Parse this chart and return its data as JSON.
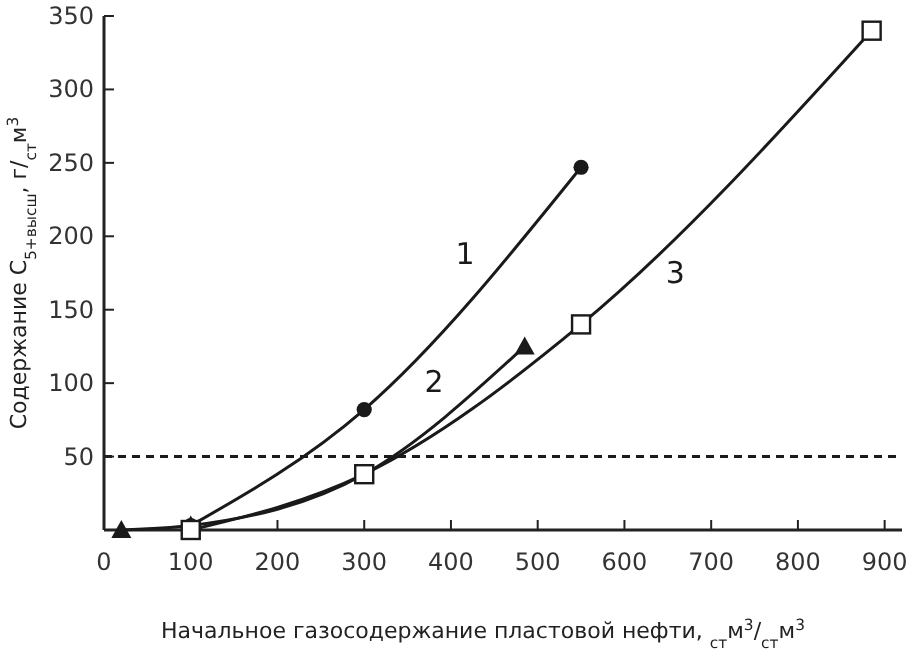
{
  "chart_data": {
    "type": "line",
    "xlabel": "Начальное газосодержание пластовой нефти, $_{ст}$м$^{3}$/$_{ст}$м$^{3}$",
    "ylabel": "Содержание C$_{5+высш}$, г/$_{ст}$м$^{3}$",
    "xlim": [
      0,
      920
    ],
    "ylim": [
      0,
      350
    ],
    "xticks": [
      0,
      100,
      200,
      300,
      400,
      500,
      600,
      700,
      800,
      900
    ],
    "yticks": [
      50,
      100,
      150,
      200,
      250,
      300,
      350
    ],
    "grid": false,
    "line_style": "solid",
    "series": [
      {
        "name": "1",
        "color": "#1a1a1a",
        "marker": "circle",
        "x": [
          100,
          300,
          550
        ],
        "values": [
          3,
          82,
          247
        ]
      },
      {
        "name": "2",
        "color": "#1a1a1a",
        "marker": "triangle",
        "x": [
          20,
          100,
          300,
          485
        ],
        "values": [
          0,
          3,
          38,
          125
        ]
      },
      {
        "name": "3",
        "color": "#1a1a1a",
        "marker": "square",
        "x": [
          100,
          300,
          550,
          885
        ],
        "values": [
          0,
          38,
          140,
          340
        ]
      }
    ],
    "ref_lines": [
      {
        "axis": "y",
        "value": 50,
        "line_style": "dashed",
        "color": "#1a1a1a"
      }
    ]
  }
}
